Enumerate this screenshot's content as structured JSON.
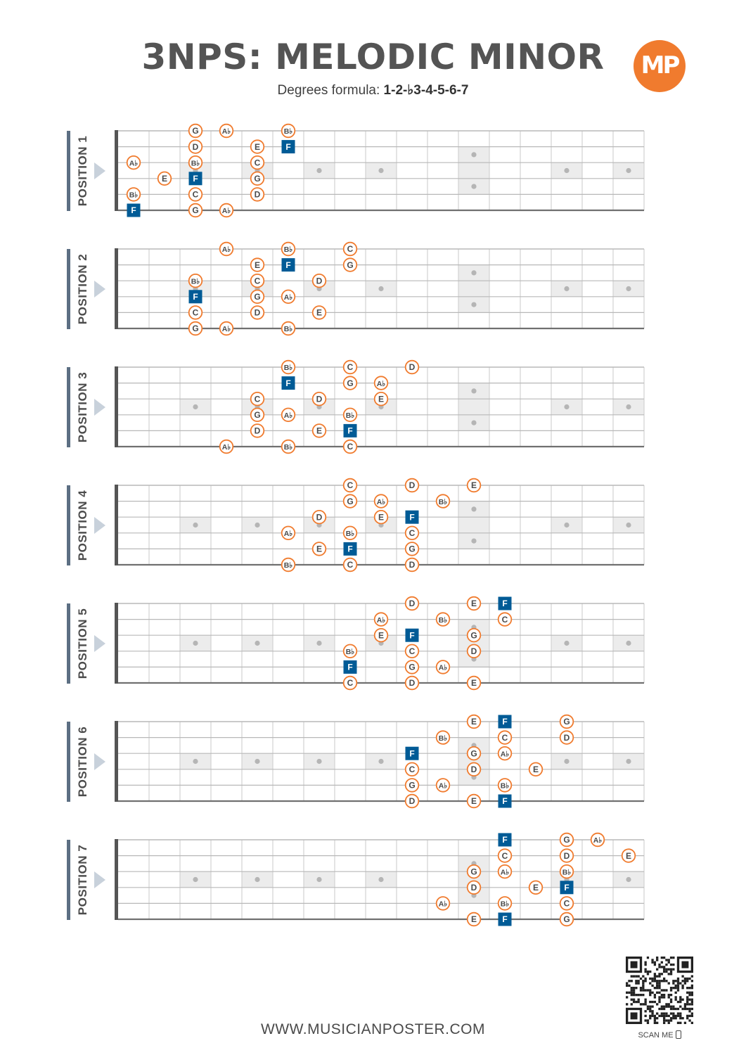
{
  "title": "3NPS: MELODIC MINOR",
  "subtitle_label": "Degrees formula:",
  "subtitle_formula": "1-2-♭3-4-5-6-7",
  "logo_text": "MP",
  "footer": "WWW.MUSICIANPOSTER.COM",
  "scan_label": "SCAN ME",
  "colors": {
    "accent": "#f07b2e",
    "root": "#005b96",
    "bar": "#5c6f83",
    "arrow": "#c8d1db"
  },
  "fretboard": {
    "strings": 6,
    "frets": 17,
    "inlays": [
      3,
      5,
      7,
      9,
      12,
      15,
      17
    ],
    "double_inlay": 12
  },
  "positions": [
    {
      "label": "POSITION 1",
      "notes": [
        {
          "s": 1,
          "f": 2,
          "n": "G"
        },
        {
          "s": 1,
          "f": 3,
          "n": "A♭"
        },
        {
          "s": 1,
          "f": 5,
          "n": "B♭"
        },
        {
          "s": 2,
          "f": 2,
          "n": "D"
        },
        {
          "s": 2,
          "f": 4,
          "n": "E"
        },
        {
          "s": 2,
          "f": 5,
          "n": "F",
          "root": true
        },
        {
          "s": 3,
          "f": 0,
          "n": "A♭"
        },
        {
          "s": 3,
          "f": 2,
          "n": "B♭"
        },
        {
          "s": 3,
          "f": 4,
          "n": "C"
        },
        {
          "s": 4,
          "f": 1,
          "n": "E"
        },
        {
          "s": 4,
          "f": 2,
          "n": "F",
          "root": true
        },
        {
          "s": 4,
          "f": 4,
          "n": "G"
        },
        {
          "s": 5,
          "f": 0,
          "n": "B♭"
        },
        {
          "s": 5,
          "f": 2,
          "n": "C"
        },
        {
          "s": 5,
          "f": 4,
          "n": "D"
        },
        {
          "s": 6,
          "f": 0,
          "n": "F",
          "root": true
        },
        {
          "s": 6,
          "f": 2,
          "n": "G"
        },
        {
          "s": 6,
          "f": 3,
          "n": "A♭"
        }
      ]
    },
    {
      "label": "POSITION 2",
      "notes": [
        {
          "s": 1,
          "f": 3,
          "n": "A♭"
        },
        {
          "s": 1,
          "f": 5,
          "n": "B♭"
        },
        {
          "s": 1,
          "f": 7,
          "n": "C"
        },
        {
          "s": 2,
          "f": 4,
          "n": "E"
        },
        {
          "s": 2,
          "f": 5,
          "n": "F",
          "root": true
        },
        {
          "s": 2,
          "f": 7,
          "n": "G"
        },
        {
          "s": 3,
          "f": 2,
          "n": "B♭"
        },
        {
          "s": 3,
          "f": 4,
          "n": "C"
        },
        {
          "s": 3,
          "f": 6,
          "n": "D"
        },
        {
          "s": 4,
          "f": 2,
          "n": "F",
          "root": true
        },
        {
          "s": 4,
          "f": 4,
          "n": "G"
        },
        {
          "s": 4,
          "f": 5,
          "n": "A♭"
        },
        {
          "s": 5,
          "f": 2,
          "n": "C"
        },
        {
          "s": 5,
          "f": 4,
          "n": "D"
        },
        {
          "s": 5,
          "f": 6,
          "n": "E"
        },
        {
          "s": 6,
          "f": 2,
          "n": "G"
        },
        {
          "s": 6,
          "f": 3,
          "n": "A♭"
        },
        {
          "s": 6,
          "f": 5,
          "n": "B♭"
        }
      ]
    },
    {
      "label": "POSITION 3",
      "notes": [
        {
          "s": 1,
          "f": 5,
          "n": "B♭"
        },
        {
          "s": 1,
          "f": 7,
          "n": "C"
        },
        {
          "s": 1,
          "f": 9,
          "n": "D"
        },
        {
          "s": 2,
          "f": 5,
          "n": "F",
          "root": true
        },
        {
          "s": 2,
          "f": 7,
          "n": "G"
        },
        {
          "s": 2,
          "f": 8,
          "n": "A♭"
        },
        {
          "s": 3,
          "f": 4,
          "n": "C"
        },
        {
          "s": 3,
          "f": 6,
          "n": "D"
        },
        {
          "s": 3,
          "f": 8,
          "n": "E"
        },
        {
          "s": 4,
          "f": 4,
          "n": "G"
        },
        {
          "s": 4,
          "f": 5,
          "n": "A♭"
        },
        {
          "s": 4,
          "f": 7,
          "n": "B♭"
        },
        {
          "s": 5,
          "f": 4,
          "n": "D"
        },
        {
          "s": 5,
          "f": 6,
          "n": "E"
        },
        {
          "s": 5,
          "f": 7,
          "n": "F",
          "root": true
        },
        {
          "s": 6,
          "f": 3,
          "n": "A♭"
        },
        {
          "s": 6,
          "f": 5,
          "n": "B♭"
        },
        {
          "s": 6,
          "f": 7,
          "n": "C"
        }
      ]
    },
    {
      "label": "POSITION 4",
      "notes": [
        {
          "s": 1,
          "f": 7,
          "n": "C"
        },
        {
          "s": 1,
          "f": 9,
          "n": "D"
        },
        {
          "s": 1,
          "f": 11,
          "n": "E"
        },
        {
          "s": 2,
          "f": 7,
          "n": "G"
        },
        {
          "s": 2,
          "f": 8,
          "n": "A♭"
        },
        {
          "s": 2,
          "f": 10,
          "n": "B♭"
        },
        {
          "s": 3,
          "f": 6,
          "n": "D"
        },
        {
          "s": 3,
          "f": 8,
          "n": "E"
        },
        {
          "s": 3,
          "f": 9,
          "n": "F",
          "root": true
        },
        {
          "s": 4,
          "f": 5,
          "n": "A♭"
        },
        {
          "s": 4,
          "f": 7,
          "n": "B♭"
        },
        {
          "s": 4,
          "f": 9,
          "n": "C"
        },
        {
          "s": 5,
          "f": 6,
          "n": "E"
        },
        {
          "s": 5,
          "f": 7,
          "n": "F",
          "root": true
        },
        {
          "s": 5,
          "f": 9,
          "n": "G"
        },
        {
          "s": 6,
          "f": 5,
          "n": "B♭"
        },
        {
          "s": 6,
          "f": 7,
          "n": "C"
        },
        {
          "s": 6,
          "f": 9,
          "n": "D"
        }
      ]
    },
    {
      "label": "POSITION 5",
      "notes": [
        {
          "s": 1,
          "f": 9,
          "n": "D"
        },
        {
          "s": 1,
          "f": 11,
          "n": "E"
        },
        {
          "s": 1,
          "f": 12,
          "n": "F",
          "root": true
        },
        {
          "s": 2,
          "f": 8,
          "n": "A♭"
        },
        {
          "s": 2,
          "f": 10,
          "n": "B♭"
        },
        {
          "s": 2,
          "f": 12,
          "n": "C"
        },
        {
          "s": 3,
          "f": 8,
          "n": "E"
        },
        {
          "s": 3,
          "f": 9,
          "n": "F",
          "root": true
        },
        {
          "s": 3,
          "f": 11,
          "n": "G"
        },
        {
          "s": 4,
          "f": 7,
          "n": "B♭"
        },
        {
          "s": 4,
          "f": 9,
          "n": "C"
        },
        {
          "s": 4,
          "f": 11,
          "n": "D"
        },
        {
          "s": 5,
          "f": 7,
          "n": "F",
          "root": true
        },
        {
          "s": 5,
          "f": 9,
          "n": "G"
        },
        {
          "s": 5,
          "f": 10,
          "n": "A♭"
        },
        {
          "s": 6,
          "f": 7,
          "n": "C"
        },
        {
          "s": 6,
          "f": 9,
          "n": "D"
        },
        {
          "s": 6,
          "f": 11,
          "n": "E"
        }
      ]
    },
    {
      "label": "POSITION 6",
      "notes": [
        {
          "s": 1,
          "f": 11,
          "n": "E"
        },
        {
          "s": 1,
          "f": 12,
          "n": "F",
          "root": true
        },
        {
          "s": 1,
          "f": 14,
          "n": "G"
        },
        {
          "s": 2,
          "f": 10,
          "n": "B♭"
        },
        {
          "s": 2,
          "f": 12,
          "n": "C"
        },
        {
          "s": 2,
          "f": 14,
          "n": "D"
        },
        {
          "s": 3,
          "f": 9,
          "n": "F",
          "root": true
        },
        {
          "s": 3,
          "f": 11,
          "n": "G"
        },
        {
          "s": 3,
          "f": 12,
          "n": "A♭"
        },
        {
          "s": 4,
          "f": 9,
          "n": "C"
        },
        {
          "s": 4,
          "f": 11,
          "n": "D"
        },
        {
          "s": 4,
          "f": 13,
          "n": "E"
        },
        {
          "s": 5,
          "f": 9,
          "n": "G"
        },
        {
          "s": 5,
          "f": 10,
          "n": "A♭"
        },
        {
          "s": 5,
          "f": 12,
          "n": "B♭"
        },
        {
          "s": 6,
          "f": 9,
          "n": "D"
        },
        {
          "s": 6,
          "f": 11,
          "n": "E"
        },
        {
          "s": 6,
          "f": 12,
          "n": "F",
          "root": true
        }
      ]
    },
    {
      "label": "POSITION 7",
      "notes": [
        {
          "s": 1,
          "f": 12,
          "n": "F",
          "root": true
        },
        {
          "s": 1,
          "f": 14,
          "n": "G"
        },
        {
          "s": 1,
          "f": 15,
          "n": "A♭"
        },
        {
          "s": 2,
          "f": 12,
          "n": "C"
        },
        {
          "s": 2,
          "f": 14,
          "n": "D"
        },
        {
          "s": 2,
          "f": 16,
          "n": "E"
        },
        {
          "s": 3,
          "f": 11,
          "n": "G"
        },
        {
          "s": 3,
          "f": 12,
          "n": "A♭"
        },
        {
          "s": 3,
          "f": 14,
          "n": "B♭"
        },
        {
          "s": 4,
          "f": 11,
          "n": "D"
        },
        {
          "s": 4,
          "f": 13,
          "n": "E"
        },
        {
          "s": 4,
          "f": 14,
          "n": "F",
          "root": true
        },
        {
          "s": 5,
          "f": 10,
          "n": "A♭"
        },
        {
          "s": 5,
          "f": 12,
          "n": "B♭"
        },
        {
          "s": 5,
          "f": 14,
          "n": "C"
        },
        {
          "s": 6,
          "f": 11,
          "n": "E"
        },
        {
          "s": 6,
          "f": 12,
          "n": "F",
          "root": true
        },
        {
          "s": 6,
          "f": 14,
          "n": "G"
        }
      ]
    }
  ]
}
